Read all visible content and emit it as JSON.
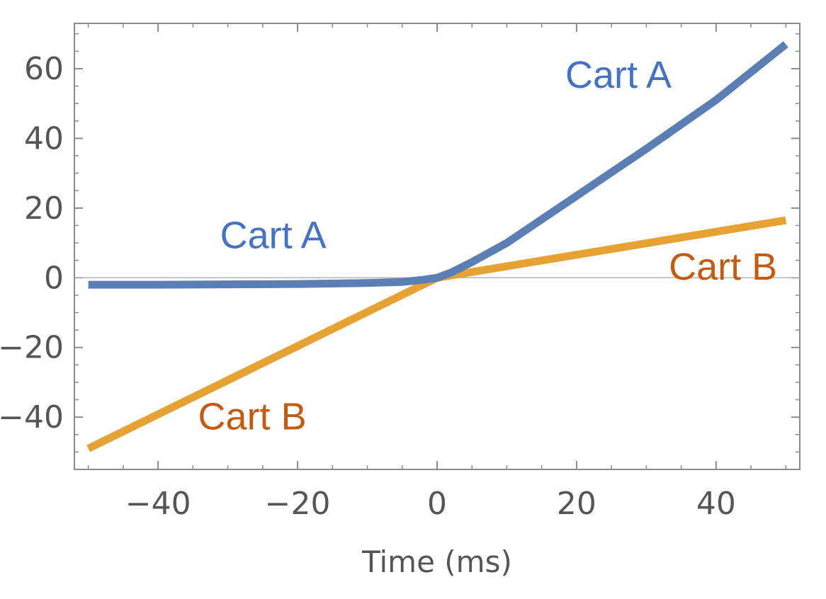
{
  "chart_data": {
    "type": "line",
    "xlabel": "Time (ms)",
    "ylabel": "",
    "xlim": [
      -52,
      52
    ],
    "ylim": [
      -55,
      73
    ],
    "x_ticks": [
      -40,
      -20,
      0,
      20,
      40
    ],
    "y_ticks": [
      -40,
      -20,
      0,
      20,
      40,
      60
    ],
    "x_tick_labels": [
      "−40",
      "−20",
      "0",
      "20",
      "40"
    ],
    "y_tick_labels": [
      "−40",
      "−20",
      "0",
      "20",
      "40",
      "60"
    ],
    "grid": false,
    "zero_line": true,
    "series": [
      {
        "name": "Cart A",
        "color": "#5b7fb5",
        "x": [
          -50,
          -40,
          -30,
          -20,
          -10,
          -5,
          -2,
          0,
          2,
          5,
          10,
          20,
          30,
          40,
          50
        ],
        "y": [
          -2.0,
          -2.0,
          -1.9,
          -1.8,
          -1.5,
          -1.2,
          -0.6,
          0,
          1.5,
          4.5,
          10,
          23.5,
          37,
          51,
          67
        ]
      },
      {
        "name": "Cart B",
        "color": "#e6a232",
        "x": [
          -50,
          -40,
          -30,
          -20,
          -10,
          0,
          10,
          20,
          30,
          40,
          50
        ],
        "y": [
          -49,
          -39.2,
          -29.4,
          -19.6,
          -9.8,
          0,
          3.3,
          6.6,
          9.9,
          13.2,
          16.5
        ]
      }
    ],
    "annotations": [
      {
        "text": "Cart A",
        "color": "#4472c4",
        "x": -23.5,
        "y": 8.5
      },
      {
        "text": "Cart A",
        "color": "#4472c4",
        "x": 26,
        "y": 54.5
      },
      {
        "text": "Cart B",
        "color": "#c55a11",
        "x": -26.5,
        "y": -43.5
      },
      {
        "text": "Cart B",
        "color": "#c55a11",
        "x": 41,
        "y": -0.5
      }
    ]
  }
}
